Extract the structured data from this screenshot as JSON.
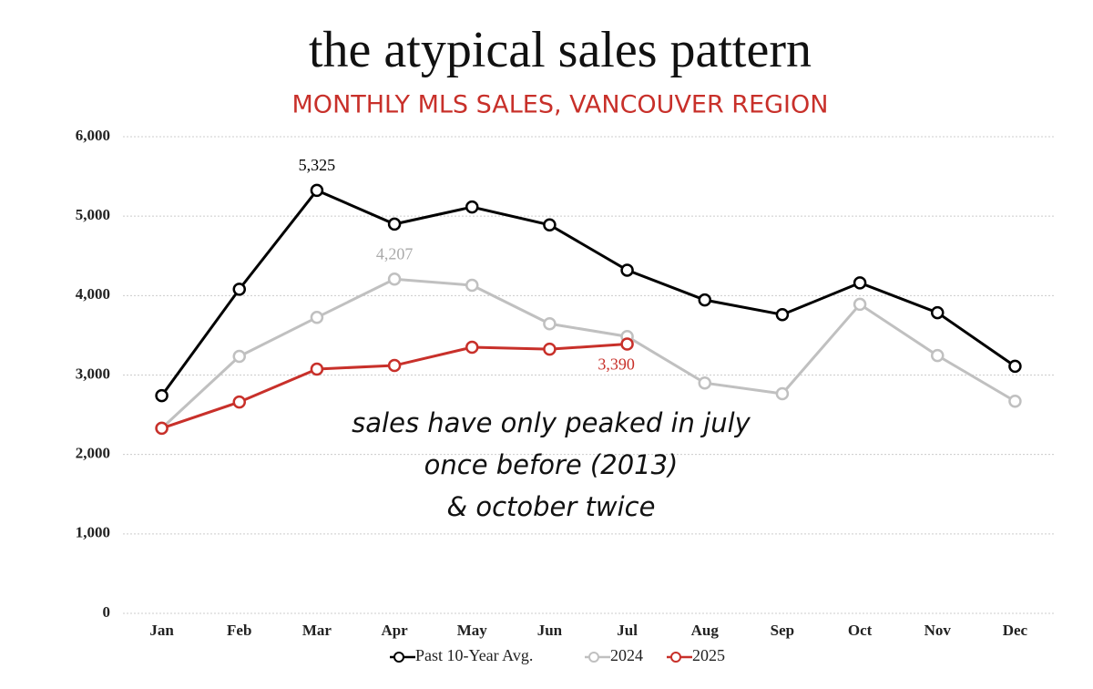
{
  "chart_data": {
    "type": "line",
    "title": "the atypical sales pattern",
    "subtitle": "MONTHLY MLS SALES, VANCOUVER REGION",
    "categories": [
      "Jan",
      "Feb",
      "Mar",
      "Apr",
      "May",
      "Jun",
      "Jul",
      "Aug",
      "Sep",
      "Oct",
      "Nov",
      "Dec"
    ],
    "series": [
      {
        "name": "Past 10-Year Avg.",
        "color": "#000000",
        "values": [
          2740,
          4080,
          5325,
          4900,
          5115,
          4890,
          4320,
          3945,
          3760,
          4160,
          3785,
          3110
        ],
        "value_labels": [
          null,
          null,
          "5,325",
          null,
          null,
          null,
          null,
          null,
          null,
          null,
          null,
          null
        ]
      },
      {
        "name": "2024",
        "color": "#c0c0c0",
        "values": [
          2330,
          3235,
          3725,
          4207,
          4130,
          3645,
          3485,
          2900,
          2765,
          3890,
          3245,
          2670
        ],
        "value_labels": [
          null,
          null,
          null,
          "4,207",
          null,
          null,
          null,
          null,
          null,
          null,
          null,
          null
        ]
      },
      {
        "name": "2025",
        "color": "#c8302a",
        "values": [
          2330,
          2660,
          3075,
          3120,
          3350,
          3325,
          3390,
          null,
          null,
          null,
          null,
          null
        ],
        "value_labels": [
          null,
          null,
          null,
          null,
          null,
          null,
          "3,390",
          null,
          null,
          null,
          null,
          null
        ]
      }
    ],
    "ylim": [
      0,
      6000
    ],
    "yticks": [
      0,
      {
        "value": 1000,
        "label": "1,000"
      },
      {
        "value": 2000,
        "label": "2,000"
      },
      {
        "value": 3000,
        "label": "3,000"
      },
      {
        "value": 4000,
        "label": "4,000"
      },
      {
        "value": 5000,
        "label": "5,000"
      },
      {
        "value": 6000,
        "label": "6,000"
      }
    ],
    "grid": true,
    "legend": "bottom",
    "annotation": [
      "sales have only peaked in july",
      "once before (2013)",
      "& october twice"
    ]
  }
}
